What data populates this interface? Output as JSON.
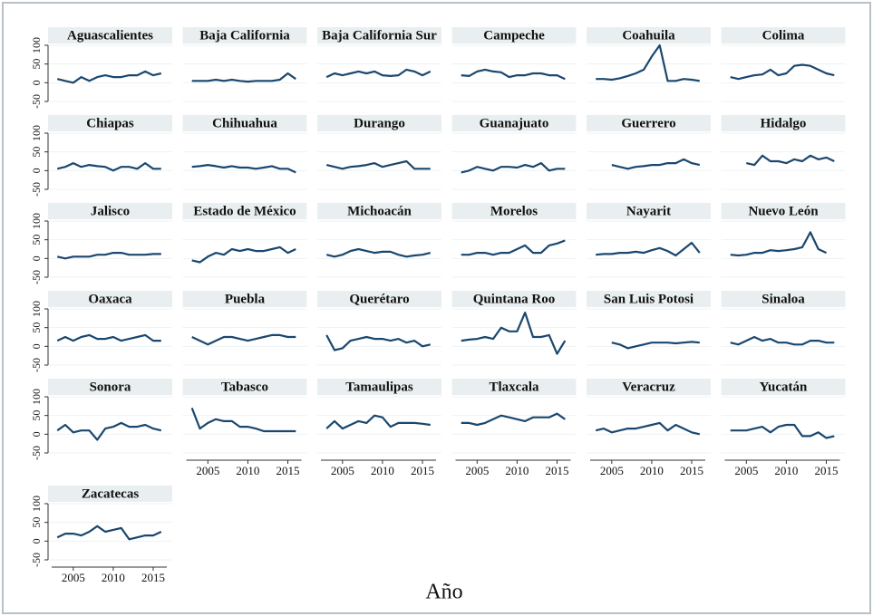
{
  "chart_data": {
    "type": "line",
    "xlabel": "Año",
    "color": "#1a476f",
    "grid": true,
    "x": [
      2003,
      2004,
      2005,
      2006,
      2007,
      2008,
      2009,
      2010,
      2011,
      2012,
      2013,
      2014,
      2015,
      2016
    ],
    "xlim": [
      2002.3,
      2016.7
    ],
    "xticks": [
      2005,
      2010,
      2015
    ],
    "ylim": [
      -50,
      100
    ],
    "yticks": [
      -50,
      0,
      50,
      100
    ],
    "series": [
      {
        "name": "Aguascalientes",
        "values": [
          10,
          5,
          0,
          15,
          5,
          15,
          20,
          15,
          15,
          20,
          20,
          30,
          20,
          25
        ]
      },
      {
        "name": "Baja California",
        "values": [
          5,
          5,
          5,
          8,
          5,
          8,
          5,
          3,
          5,
          5,
          5,
          8,
          25,
          10
        ]
      },
      {
        "name": "Baja California Sur",
        "values": [
          15,
          25,
          20,
          25,
          30,
          25,
          30,
          20,
          18,
          20,
          35,
          30,
          20,
          30
        ]
      },
      {
        "name": "Campeche",
        "values": [
          20,
          18,
          30,
          35,
          30,
          28,
          15,
          20,
          20,
          25,
          25,
          20,
          20,
          10
        ]
      },
      {
        "name": "Coahuila",
        "values": [
          10,
          10,
          8,
          12,
          18,
          25,
          35,
          70,
          100,
          5,
          5,
          10,
          8,
          5
        ]
      },
      {
        "name": "Colima",
        "values": [
          15,
          10,
          15,
          20,
          22,
          35,
          20,
          25,
          45,
          48,
          45,
          35,
          25,
          20
        ]
      },
      {
        "name": "Chiapas",
        "values": [
          5,
          10,
          20,
          10,
          15,
          12,
          10,
          0,
          10,
          10,
          5,
          20,
          5,
          5
        ]
      },
      {
        "name": "Chihuahua",
        "values": [
          10,
          12,
          15,
          12,
          8,
          12,
          8,
          8,
          5,
          8,
          12,
          5,
          5,
          -5
        ]
      },
      {
        "name": "Durango",
        "values": [
          15,
          10,
          5,
          10,
          12,
          15,
          20,
          10,
          15,
          20,
          25,
          5,
          5,
          5
        ]
      },
      {
        "name": "Guanajuato",
        "values": [
          -5,
          0,
          10,
          5,
          0,
          10,
          10,
          8,
          15,
          10,
          20,
          0,
          5,
          5
        ]
      },
      {
        "name": "Guerrero",
        "values": [
          null,
          null,
          15,
          10,
          5,
          10,
          12,
          15,
          15,
          20,
          20,
          30,
          20,
          15
        ]
      },
      {
        "name": "Hidalgo",
        "values": [
          null,
          null,
          20,
          15,
          40,
          25,
          25,
          20,
          30,
          25,
          40,
          30,
          35,
          25
        ]
      },
      {
        "name": "Jalisco",
        "values": [
          5,
          0,
          5,
          5,
          5,
          10,
          10,
          15,
          15,
          10,
          10,
          10,
          12,
          12
        ]
      },
      {
        "name": "Estado de México",
        "values": [
          -5,
          -10,
          5,
          15,
          10,
          25,
          20,
          25,
          20,
          20,
          25,
          30,
          15,
          25
        ]
      },
      {
        "name": "Michoacán",
        "values": [
          10,
          5,
          10,
          20,
          25,
          20,
          15,
          18,
          18,
          10,
          5,
          8,
          10,
          15
        ]
      },
      {
        "name": "Morelos",
        "values": [
          10,
          10,
          15,
          15,
          10,
          15,
          15,
          25,
          35,
          15,
          15,
          35,
          40,
          48
        ]
      },
      {
        "name": "Nayarit",
        "values": [
          10,
          12,
          12,
          15,
          15,
          18,
          15,
          22,
          28,
          20,
          8,
          25,
          42,
          15
        ]
      },
      {
        "name": "Nuevo León",
        "values": [
          10,
          8,
          10,
          15,
          15,
          22,
          20,
          22,
          25,
          30,
          70,
          25,
          15,
          null
        ]
      },
      {
        "name": "Oaxaca",
        "values": [
          15,
          25,
          15,
          25,
          30,
          20,
          20,
          25,
          15,
          20,
          25,
          30,
          15,
          15
        ]
      },
      {
        "name": "Puebla",
        "values": [
          25,
          15,
          5,
          15,
          25,
          25,
          20,
          15,
          20,
          25,
          30,
          30,
          25,
          25
        ]
      },
      {
        "name": "Querétaro",
        "values": [
          30,
          -10,
          -5,
          15,
          20,
          25,
          20,
          20,
          15,
          20,
          10,
          15,
          0,
          5
        ]
      },
      {
        "name": "Quintana Roo",
        "values": [
          15,
          18,
          20,
          25,
          20,
          50,
          40,
          40,
          90,
          25,
          25,
          30,
          -20,
          15
        ]
      },
      {
        "name": "San Luis Potosi",
        "values": [
          null,
          null,
          10,
          5,
          -5,
          0,
          5,
          10,
          10,
          10,
          8,
          10,
          12,
          10
        ]
      },
      {
        "name": "Sinaloa",
        "values": [
          10,
          5,
          15,
          25,
          15,
          20,
          10,
          10,
          5,
          5,
          15,
          15,
          10,
          10
        ]
      },
      {
        "name": "Sonora",
        "values": [
          10,
          25,
          5,
          10,
          10,
          -15,
          15,
          20,
          30,
          20,
          20,
          25,
          15,
          10
        ]
      },
      {
        "name": "Tabasco",
        "values": [
          70,
          15,
          30,
          40,
          35,
          35,
          20,
          20,
          15,
          8,
          8,
          8,
          8,
          8
        ]
      },
      {
        "name": "Tamaulipas",
        "values": [
          15,
          35,
          15,
          25,
          35,
          30,
          50,
          45,
          20,
          30,
          30,
          30,
          28,
          25
        ]
      },
      {
        "name": "Tlaxcala",
        "values": [
          30,
          30,
          25,
          30,
          40,
          50,
          45,
          40,
          35,
          45,
          45,
          45,
          55,
          40
        ]
      },
      {
        "name": "Veracruz",
        "values": [
          10,
          15,
          5,
          10,
          15,
          15,
          20,
          25,
          30,
          10,
          25,
          15,
          5,
          0
        ]
      },
      {
        "name": "Yucatán",
        "values": [
          10,
          10,
          10,
          15,
          20,
          5,
          20,
          25,
          25,
          -5,
          -5,
          5,
          -10,
          -5
        ]
      },
      {
        "name": "Zacatecas",
        "values": [
          10,
          20,
          20,
          15,
          25,
          40,
          25,
          30,
          35,
          5,
          10,
          15,
          15,
          25
        ]
      }
    ]
  }
}
